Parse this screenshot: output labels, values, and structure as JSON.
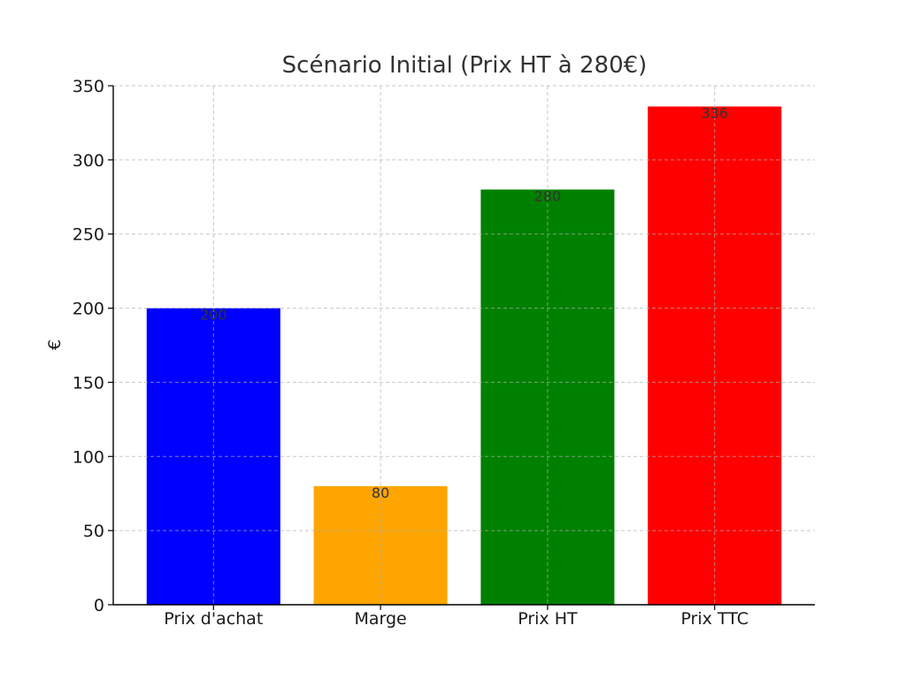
{
  "chart_data": {
    "type": "bar",
    "title": "Scénario Initial (Prix HT à 280€)",
    "xlabel": "",
    "ylabel": "€",
    "categories": [
      "Prix d'achat",
      "Marge",
      "Prix HT",
      "Prix TTC"
    ],
    "values": [
      200,
      80,
      280,
      336
    ],
    "colors": [
      "#0000ff",
      "#ffa500",
      "#008000",
      "#ff0000"
    ],
    "data_labels": [
      "200",
      "80",
      "280",
      "336"
    ],
    "ylim": [
      0,
      350
    ],
    "yticks": [
      0,
      50,
      100,
      150,
      200,
      250,
      300,
      350
    ],
    "ytick_labels": [
      "0",
      "50",
      "100",
      "150",
      "200",
      "250",
      "300",
      "350"
    ],
    "grid": true,
    "legend": false
  }
}
